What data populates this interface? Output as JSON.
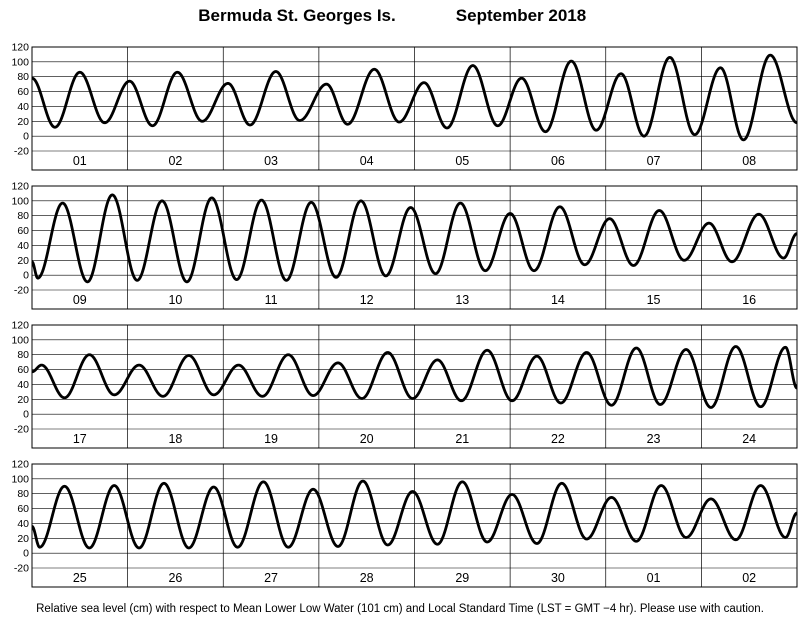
{
  "header": {
    "station": "Bermuda St. Georges Is.",
    "month": "September   2018"
  },
  "footer": {
    "note": "Relative sea level (cm) with respect to Mean Lower Low Water (101 cm) and Local Standard Time (LST = GMT −4 hr). Please use with caution."
  },
  "chart_data": [
    {
      "type": "line",
      "ylabel": "",
      "ylim": [
        -20,
        120
      ],
      "yticks": [
        -20,
        0,
        20,
        40,
        60,
        80,
        100,
        120
      ],
      "x_unit": "days",
      "xlim": [
        0,
        8
      ],
      "day_labels": [
        "01",
        "02",
        "03",
        "04",
        "05",
        "06",
        "07",
        "08"
      ],
      "extrema": [
        [
          0.0,
          78
        ],
        [
          0.24,
          12
        ],
        [
          0.5,
          86
        ],
        [
          0.76,
          18
        ],
        [
          1.02,
          74
        ],
        [
          1.26,
          14
        ],
        [
          1.52,
          86
        ],
        [
          1.78,
          20
        ],
        [
          2.05,
          71
        ],
        [
          2.28,
          15
        ],
        [
          2.55,
          87
        ],
        [
          2.8,
          21
        ],
        [
          3.08,
          70
        ],
        [
          3.3,
          16
        ],
        [
          3.58,
          90
        ],
        [
          3.84,
          19
        ],
        [
          4.1,
          72
        ],
        [
          4.34,
          11
        ],
        [
          4.61,
          95
        ],
        [
          4.87,
          14
        ],
        [
          5.12,
          78
        ],
        [
          5.37,
          6
        ],
        [
          5.64,
          101
        ],
        [
          5.9,
          8
        ],
        [
          6.16,
          84
        ],
        [
          6.4,
          0
        ],
        [
          6.67,
          106
        ],
        [
          6.93,
          2
        ],
        [
          7.2,
          92
        ],
        [
          7.44,
          -5
        ],
        [
          7.72,
          109
        ],
        [
          8.0,
          18
        ]
      ]
    },
    {
      "type": "line",
      "ylabel": "",
      "ylim": [
        -20,
        120
      ],
      "yticks": [
        -20,
        0,
        20,
        40,
        60,
        80,
        100,
        120
      ],
      "x_unit": "days",
      "xlim": [
        0,
        8
      ],
      "day_labels": [
        "09",
        "10",
        "11",
        "12",
        "13",
        "14",
        "15",
        "16"
      ],
      "extrema": [
        [
          0.0,
          18
        ],
        [
          0.06,
          -4
        ],
        [
          0.32,
          97
        ],
        [
          0.58,
          -9
        ],
        [
          0.84,
          108
        ],
        [
          1.1,
          -7
        ],
        [
          1.36,
          100
        ],
        [
          1.62,
          -9
        ],
        [
          1.88,
          104
        ],
        [
          2.14,
          -6
        ],
        [
          2.4,
          101
        ],
        [
          2.66,
          -7
        ],
        [
          2.92,
          98
        ],
        [
          3.18,
          -3
        ],
        [
          3.44,
          100
        ],
        [
          3.7,
          -1
        ],
        [
          3.96,
          91
        ],
        [
          4.22,
          2
        ],
        [
          4.48,
          97
        ],
        [
          4.74,
          6
        ],
        [
          5.0,
          83
        ],
        [
          5.25,
          6
        ],
        [
          5.52,
          92
        ],
        [
          5.78,
          14
        ],
        [
          6.04,
          76
        ],
        [
          6.29,
          13
        ],
        [
          6.56,
          87
        ],
        [
          6.82,
          20
        ],
        [
          7.08,
          70
        ],
        [
          7.32,
          18
        ],
        [
          7.6,
          82
        ],
        [
          7.86,
          23
        ],
        [
          8.0,
          56
        ]
      ]
    },
    {
      "type": "line",
      "ylabel": "",
      "ylim": [
        -20,
        120
      ],
      "yticks": [
        -20,
        0,
        20,
        40,
        60,
        80,
        100,
        120
      ],
      "x_unit": "days",
      "xlim": [
        0,
        8
      ],
      "day_labels": [
        "17",
        "18",
        "19",
        "20",
        "21",
        "22",
        "23",
        "24"
      ],
      "extrema": [
        [
          0.0,
          57
        ],
        [
          0.1,
          66
        ],
        [
          0.34,
          22
        ],
        [
          0.6,
          80
        ],
        [
          0.86,
          26
        ],
        [
          1.12,
          66
        ],
        [
          1.37,
          24
        ],
        [
          1.64,
          79
        ],
        [
          1.9,
          26
        ],
        [
          2.16,
          66
        ],
        [
          2.41,
          24
        ],
        [
          2.68,
          80
        ],
        [
          2.94,
          25
        ],
        [
          3.2,
          69
        ],
        [
          3.45,
          21
        ],
        [
          3.72,
          83
        ],
        [
          3.98,
          21
        ],
        [
          4.24,
          73
        ],
        [
          4.49,
          18
        ],
        [
          4.76,
          86
        ],
        [
          5.02,
          18
        ],
        [
          5.28,
          78
        ],
        [
          5.53,
          15
        ],
        [
          5.8,
          83
        ],
        [
          6.06,
          12
        ],
        [
          6.32,
          89
        ],
        [
          6.57,
          13
        ],
        [
          6.84,
          87
        ],
        [
          7.1,
          9
        ],
        [
          7.36,
          91
        ],
        [
          7.62,
          10
        ],
        [
          7.88,
          90
        ],
        [
          8.0,
          35
        ]
      ]
    },
    {
      "type": "line",
      "ylabel": "",
      "ylim": [
        -20,
        120
      ],
      "yticks": [
        -20,
        0,
        20,
        40,
        60,
        80,
        100,
        120
      ],
      "x_unit": "days",
      "xlim": [
        0,
        8
      ],
      "day_labels": [
        "25",
        "26",
        "27",
        "28",
        "29",
        "30",
        "01",
        "02"
      ],
      "extrema": [
        [
          0.0,
          36
        ],
        [
          0.08,
          8
        ],
        [
          0.34,
          90
        ],
        [
          0.6,
          7
        ],
        [
          0.86,
          91
        ],
        [
          1.12,
          7
        ],
        [
          1.38,
          94
        ],
        [
          1.64,
          7
        ],
        [
          1.9,
          89
        ],
        [
          2.15,
          8
        ],
        [
          2.42,
          96
        ],
        [
          2.68,
          8
        ],
        [
          2.94,
          86
        ],
        [
          3.2,
          9
        ],
        [
          3.46,
          97
        ],
        [
          3.72,
          11
        ],
        [
          3.98,
          83
        ],
        [
          4.24,
          12
        ],
        [
          4.5,
          96
        ],
        [
          4.76,
          15
        ],
        [
          5.02,
          79
        ],
        [
          5.28,
          13
        ],
        [
          5.54,
          94
        ],
        [
          5.8,
          19
        ],
        [
          6.06,
          75
        ],
        [
          6.32,
          16
        ],
        [
          6.58,
          91
        ],
        [
          6.84,
          21
        ],
        [
          7.1,
          73
        ],
        [
          7.36,
          18
        ],
        [
          7.62,
          91
        ],
        [
          7.88,
          21
        ],
        [
          8.0,
          54
        ]
      ]
    }
  ]
}
